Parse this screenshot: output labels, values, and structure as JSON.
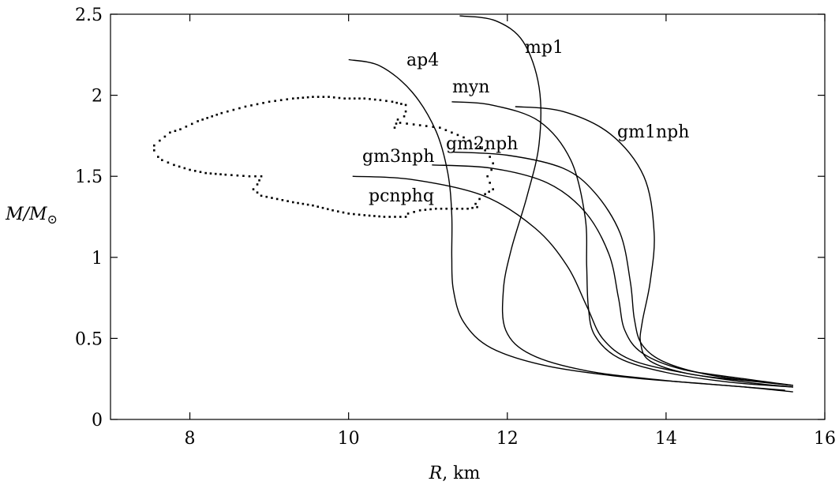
{
  "chart_data": {
    "type": "line",
    "xlabel": "R, km",
    "ylabel": "M/M⊙",
    "xlim": [
      7,
      16
    ],
    "ylim": [
      0,
      2.5
    ],
    "xticks": [
      8,
      10,
      12,
      14,
      16
    ],
    "yticks": [
      0,
      0.5,
      1,
      1.5,
      2,
      2.5
    ],
    "xtick_labels": [
      "8",
      "10",
      "12",
      "14",
      "16"
    ],
    "ytick_labels": [
      "0",
      "0.5",
      "1",
      "1.5",
      "2",
      "2.5"
    ],
    "grid": false,
    "series": [
      {
        "name": "ap4",
        "points": [
          [
            10.0,
            2.22
          ],
          [
            10.4,
            2.18
          ],
          [
            10.8,
            2.02
          ],
          [
            11.1,
            1.78
          ],
          [
            11.25,
            1.52
          ],
          [
            11.3,
            1.26
          ],
          [
            11.3,
            1.0
          ],
          [
            11.32,
            0.8
          ],
          [
            11.45,
            0.6
          ],
          [
            11.8,
            0.44
          ],
          [
            12.5,
            0.33
          ],
          [
            13.5,
            0.26
          ],
          [
            14.5,
            0.22
          ],
          [
            15.5,
            0.18
          ]
        ]
      },
      {
        "name": "mp1",
        "points": [
          [
            11.4,
            2.49
          ],
          [
            11.85,
            2.46
          ],
          [
            12.2,
            2.33
          ],
          [
            12.4,
            2.05
          ],
          [
            12.4,
            1.7
          ],
          [
            12.25,
            1.38
          ],
          [
            12.05,
            1.05
          ],
          [
            11.95,
            0.8
          ],
          [
            11.98,
            0.55
          ],
          [
            12.3,
            0.4
          ],
          [
            13.0,
            0.3
          ],
          [
            14.0,
            0.24
          ],
          [
            15.0,
            0.2
          ],
          [
            15.6,
            0.17
          ]
        ]
      },
      {
        "name": "myn",
        "points": [
          [
            11.3,
            1.96
          ],
          [
            11.8,
            1.94
          ],
          [
            12.4,
            1.84
          ],
          [
            12.8,
            1.6
          ],
          [
            12.98,
            1.25
          ],
          [
            13.0,
            0.95
          ],
          [
            13.02,
            0.7
          ],
          [
            13.1,
            0.52
          ],
          [
            13.4,
            0.38
          ],
          [
            14.0,
            0.29
          ],
          [
            14.8,
            0.23
          ],
          [
            15.6,
            0.2
          ]
        ]
      },
      {
        "name": "gm1nph",
        "points": [
          [
            12.1,
            1.93
          ],
          [
            12.7,
            1.9
          ],
          [
            13.3,
            1.76
          ],
          [
            13.72,
            1.5
          ],
          [
            13.85,
            1.15
          ],
          [
            13.8,
            0.85
          ],
          [
            13.7,
            0.6
          ],
          [
            13.68,
            0.47
          ],
          [
            13.8,
            0.36
          ],
          [
            14.3,
            0.28
          ],
          [
            15.0,
            0.24
          ],
          [
            15.6,
            0.21
          ]
        ]
      },
      {
        "name": "gm2nph",
        "points": [
          [
            11.3,
            1.65
          ],
          [
            12.0,
            1.63
          ],
          [
            12.7,
            1.55
          ],
          [
            13.1,
            1.4
          ],
          [
            13.42,
            1.15
          ],
          [
            13.55,
            0.85
          ],
          [
            13.6,
            0.62
          ],
          [
            13.7,
            0.46
          ],
          [
            14.0,
            0.35
          ],
          [
            14.6,
            0.27
          ],
          [
            15.6,
            0.21
          ]
        ]
      },
      {
        "name": "gm3nph",
        "points": [
          [
            11.05,
            1.57
          ],
          [
            11.8,
            1.55
          ],
          [
            12.5,
            1.46
          ],
          [
            12.98,
            1.28
          ],
          [
            13.28,
            1.02
          ],
          [
            13.4,
            0.75
          ],
          [
            13.48,
            0.55
          ],
          [
            13.7,
            0.41
          ],
          [
            14.2,
            0.31
          ],
          [
            15.0,
            0.25
          ],
          [
            15.6,
            0.21
          ]
        ]
      },
      {
        "name": "pcnphq",
        "points": [
          [
            10.05,
            1.5
          ],
          [
            10.8,
            1.48
          ],
          [
            11.7,
            1.38
          ],
          [
            12.35,
            1.18
          ],
          [
            12.75,
            0.95
          ],
          [
            13.0,
            0.7
          ],
          [
            13.2,
            0.5
          ],
          [
            13.55,
            0.37
          ],
          [
            14.2,
            0.29
          ],
          [
            15.0,
            0.23
          ],
          [
            15.6,
            0.2
          ]
        ]
      }
    ],
    "dotted_region": {
      "points": [
        [
          9.55,
          1.99
        ],
        [
          9.3,
          1.98
        ],
        [
          9.0,
          1.96
        ],
        [
          8.7,
          1.93
        ],
        [
          8.4,
          1.89
        ],
        [
          8.1,
          1.84
        ],
        [
          7.88,
          1.79
        ],
        [
          7.75,
          1.77
        ],
        [
          7.62,
          1.72
        ],
        [
          7.55,
          1.69
        ],
        [
          7.55,
          1.66
        ],
        [
          7.6,
          1.62
        ],
        [
          7.65,
          1.6
        ],
        [
          7.8,
          1.57
        ],
        [
          8.0,
          1.54
        ],
        [
          8.2,
          1.52
        ],
        [
          8.45,
          1.51
        ],
        [
          8.75,
          1.5
        ],
        [
          8.9,
          1.5
        ],
        [
          8.85,
          1.45
        ],
        [
          8.8,
          1.42
        ],
        [
          8.9,
          1.38
        ],
        [
          9.1,
          1.36
        ],
        [
          9.3,
          1.34
        ],
        [
          9.55,
          1.32
        ],
        [
          9.8,
          1.29
        ],
        [
          10.0,
          1.27
        ],
        [
          10.2,
          1.26
        ],
        [
          10.45,
          1.25
        ],
        [
          10.72,
          1.25
        ],
        [
          10.75,
          1.27
        ],
        [
          10.9,
          1.29
        ],
        [
          11.1,
          1.3
        ],
        [
          11.3,
          1.3
        ],
        [
          11.5,
          1.3
        ],
        [
          11.62,
          1.31
        ],
        [
          11.6,
          1.33
        ],
        [
          11.65,
          1.36
        ],
        [
          11.72,
          1.39
        ],
        [
          11.82,
          1.42
        ],
        [
          11.78,
          1.46
        ],
        [
          11.75,
          1.5
        ],
        [
          11.8,
          1.54
        ],
        [
          11.82,
          1.58
        ],
        [
          11.78,
          1.62
        ],
        [
          11.72,
          1.66
        ],
        [
          11.6,
          1.7
        ],
        [
          11.45,
          1.74
        ],
        [
          11.3,
          1.77
        ],
        [
          11.15,
          1.8
        ],
        [
          10.98,
          1.81
        ],
        [
          10.82,
          1.82
        ],
        [
          10.65,
          1.83
        ],
        [
          10.58,
          1.8
        ],
        [
          10.62,
          1.85
        ],
        [
          10.7,
          1.87
        ],
        [
          10.72,
          1.9
        ],
        [
          10.72,
          1.94
        ],
        [
          10.55,
          1.96
        ],
        [
          10.4,
          1.97
        ],
        [
          10.2,
          1.98
        ],
        [
          9.95,
          1.98
        ],
        [
          9.75,
          1.99
        ]
      ]
    }
  }
}
